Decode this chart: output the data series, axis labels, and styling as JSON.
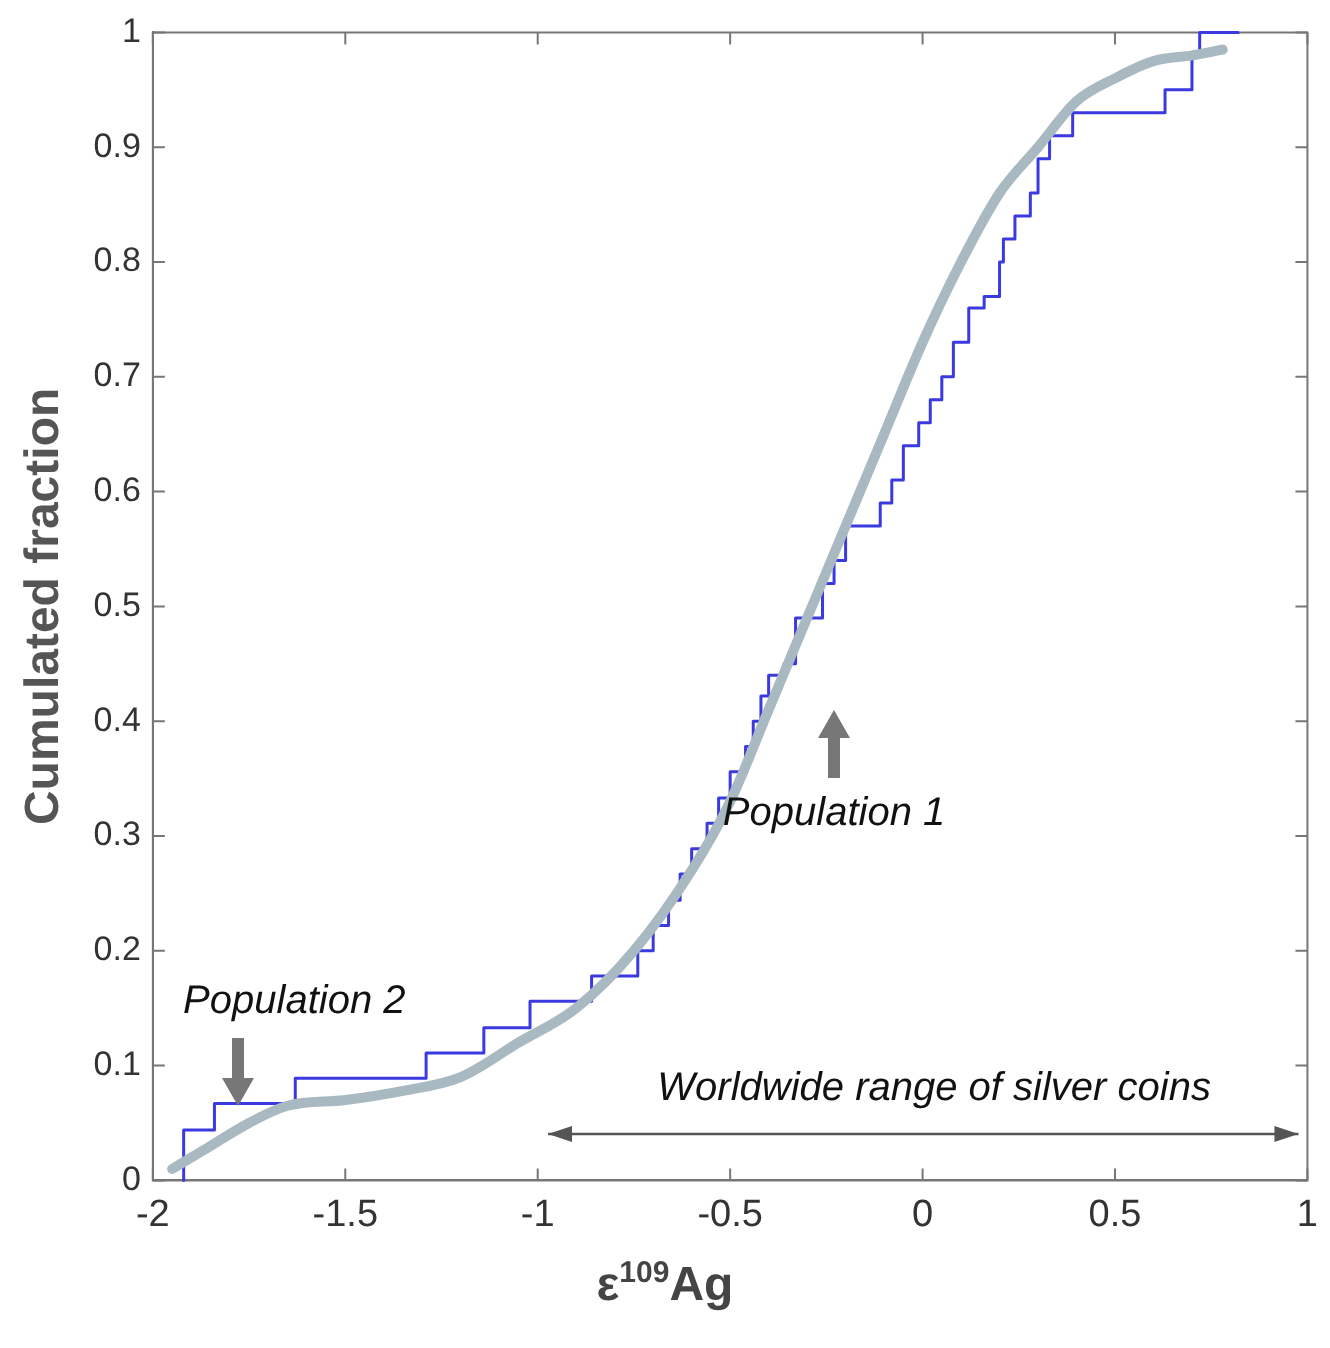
{
  "chart_data": {
    "type": "step",
    "xlabel": "ε$^{109}$Ag",
    "ylabel": "Cumulated fraction",
    "xlim": [
      -2,
      1
    ],
    "xticks": [
      -2,
      -1.5,
      -1,
      -0.5,
      0,
      0.5,
      1
    ],
    "ylim": [
      0,
      1
    ],
    "yticks": [
      0,
      0.1,
      0.2,
      0.3,
      0.4,
      0.5,
      0.6,
      0.7,
      0.8,
      0.9,
      1
    ],
    "grid": false,
    "legend": false,
    "series": [
      {
        "color": "#3a3ae0",
        "x": [
          -1.92,
          -1.92,
          -1.84,
          -1.63,
          -1.29,
          -1.14,
          -1.02,
          -0.86,
          -0.74,
          -0.7,
          -0.66,
          -0.63,
          -0.6,
          -0.56,
          -0.53,
          -0.5,
          -0.46,
          -0.44,
          -0.42,
          -0.4,
          -0.36,
          -0.33,
          -0.26,
          -0.23,
          -0.2,
          -0.11,
          -0.08,
          -0.05,
          -0.01,
          0.02,
          0.05,
          0.08,
          0.12,
          0.16,
          0.2,
          0.21,
          0.24,
          0.28,
          0.3,
          0.33,
          0.39,
          0.63,
          0.7,
          0.72,
          0.82
        ],
        "values": [
          0,
          0.022,
          0.044,
          0.067,
          0.089,
          0.111,
          0.133,
          0.156,
          0.178,
          0.2,
          0.222,
          0.244,
          0.267,
          0.289,
          0.311,
          0.333,
          0.356,
          0.378,
          0.4,
          0.422,
          0.44,
          0.45,
          0.49,
          0.52,
          0.54,
          0.57,
          0.59,
          0.61,
          0.64,
          0.66,
          0.68,
          0.7,
          0.73,
          0.76,
          0.77,
          0.8,
          0.82,
          0.84,
          0.86,
          0.89,
          0.91,
          0.93,
          0.95,
          0.98,
          1
        ]
      },
      {
        "type": "line",
        "color": "#a9b9c1",
        "x": [
          -1.95,
          -1.85,
          -1.75,
          -1.65,
          -1.5,
          -1.35,
          -1.2,
          -1.05,
          -0.9,
          -0.75,
          -0.6,
          -0.5,
          -0.4,
          -0.3,
          -0.2,
          -0.1,
          0,
          0.1,
          0.2,
          0.3,
          0.4,
          0.5,
          0.6,
          0.7,
          0.78
        ],
        "values": [
          0.01,
          0.03,
          0.05,
          0.065,
          0.07,
          0.078,
          0.09,
          0.12,
          0.15,
          0.2,
          0.27,
          0.33,
          0.41,
          0.49,
          0.57,
          0.65,
          0.73,
          0.8,
          0.86,
          0.9,
          0.94,
          0.96,
          0.975,
          0.98,
          0.985
        ]
      }
    ],
    "annotations": [
      "Population 1",
      "Population 2",
      "Worldwide range of silver coins"
    ]
  }
}
